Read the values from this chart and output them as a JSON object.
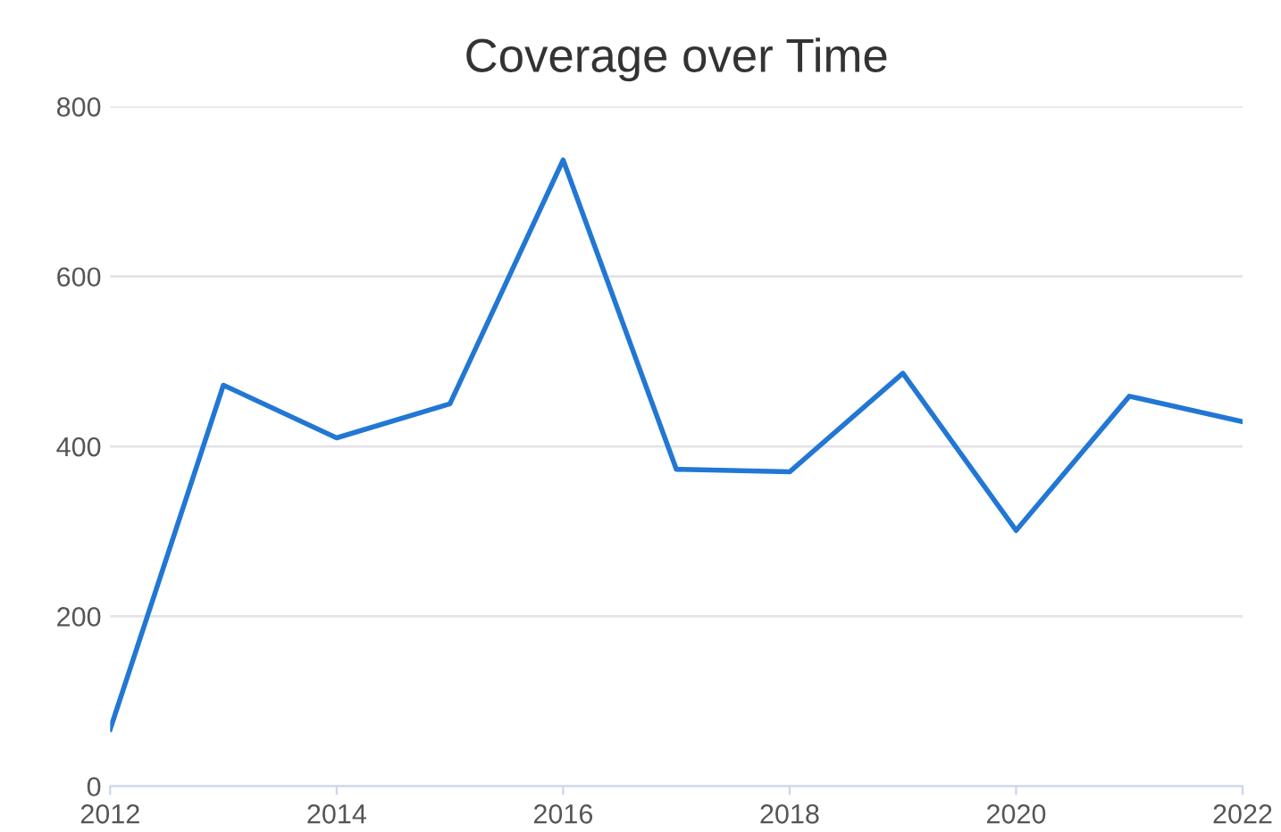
{
  "chart_data": {
    "type": "line",
    "title": "Coverage over Time",
    "x": [
      2012,
      2013,
      2014,
      2015,
      2016,
      2017,
      2018,
      2019,
      2020,
      2021,
      2022
    ],
    "series": [
      {
        "color": "#2277d4",
        "values": [
          67,
          472,
          410,
          450,
          737,
          373,
          370,
          486,
          301,
          459,
          429
        ]
      }
    ],
    "xlim": [
      2012,
      2022
    ],
    "xticks": [
      2012,
      2014,
      2016,
      2018,
      2020,
      2022
    ],
    "ylim": [
      0,
      800
    ],
    "yticks": [
      0,
      200,
      400,
      600,
      800
    ],
    "grid": "y",
    "legend": false,
    "marker": "none",
    "line_style": "solid"
  }
}
